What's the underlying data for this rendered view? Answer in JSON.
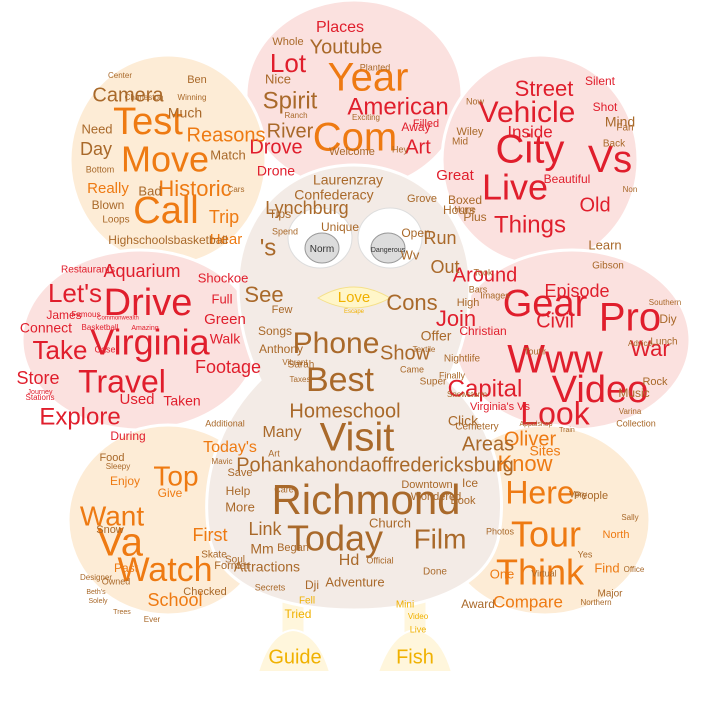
{
  "palette": {
    "red": "#e01e2c",
    "orange": "#ee7a12",
    "brown": "#a9692a",
    "gold": "#f0b100",
    "petal_pink": "#fbe1df",
    "petal_peach": "#fdecd6",
    "body_fill": "#f3ebe6",
    "outline": "#ffffff"
  },
  "eyes": {
    "left_text": "Norm",
    "right_text": "Dangerous"
  },
  "beak_text": [
    "Love",
    "Escape"
  ],
  "words": {
    "head": [
      {
        "t": "Year",
        "c": "orange"
      },
      {
        "t": "Com",
        "c": "orange"
      },
      {
        "t": "Lot",
        "c": "red"
      },
      {
        "t": "Youtube",
        "c": "brown"
      },
      {
        "t": "Spirit",
        "c": "brown"
      },
      {
        "t": "American",
        "c": "red"
      },
      {
        "t": "River",
        "c": "brown"
      },
      {
        "t": "Drove",
        "c": "red"
      },
      {
        "t": "Art",
        "c": "red"
      },
      {
        "t": "Nice",
        "c": "brown"
      },
      {
        "t": "Places",
        "c": "red"
      },
      {
        "t": "Whole",
        "c": "brown"
      },
      {
        "t": "Filled",
        "c": "red"
      },
      {
        "t": "Away",
        "c": "red"
      },
      {
        "t": "Drone",
        "c": "red"
      },
      {
        "t": "Welcome",
        "c": "brown"
      },
      {
        "t": "Planted",
        "c": "brown"
      },
      {
        "t": "Ranch",
        "c": "brown"
      },
      {
        "t": "Exciting",
        "c": "brown"
      },
      {
        "t": "Hey",
        "c": "brown"
      }
    ],
    "upper_left": [
      {
        "t": "Test",
        "c": "orange"
      },
      {
        "t": "Move",
        "c": "orange"
      },
      {
        "t": "Call",
        "c": "orange"
      },
      {
        "t": "Reasons",
        "c": "orange"
      },
      {
        "t": "Camera",
        "c": "brown"
      },
      {
        "t": "Historic",
        "c": "orange"
      },
      {
        "t": "Much",
        "c": "brown"
      },
      {
        "t": "Day",
        "c": "brown"
      },
      {
        "t": "Need",
        "c": "brown"
      },
      {
        "t": "Match",
        "c": "brown"
      },
      {
        "t": "Really",
        "c": "orange"
      },
      {
        "t": "Bad",
        "c": "brown"
      },
      {
        "t": "Blown",
        "c": "brown"
      },
      {
        "t": "Trip",
        "c": "orange"
      },
      {
        "t": "Hear",
        "c": "orange"
      },
      {
        "t": "Loops",
        "c": "brown"
      },
      {
        "t": "Highschoolsbasketball",
        "c": "brown"
      },
      {
        "t": "Ben",
        "c": "brown"
      },
      {
        "t": "Center",
        "c": "brown"
      },
      {
        "t": "Charleston",
        "c": "brown"
      },
      {
        "t": "Winning",
        "c": "brown"
      },
      {
        "t": "Bottom",
        "c": "brown"
      },
      {
        "t": "Cars",
        "c": "brown"
      }
    ],
    "upper_right": [
      {
        "t": "City",
        "c": "red"
      },
      {
        "t": "Vs",
        "c": "red"
      },
      {
        "t": "Vehicle",
        "c": "red"
      },
      {
        "t": "Live",
        "c": "red"
      },
      {
        "t": "Street",
        "c": "red"
      },
      {
        "t": "Things",
        "c": "red"
      },
      {
        "t": "Old",
        "c": "red"
      },
      {
        "t": "Inside",
        "c": "red"
      },
      {
        "t": "Great",
        "c": "red"
      },
      {
        "t": "Mind",
        "c": "brown"
      },
      {
        "t": "Shot",
        "c": "red"
      },
      {
        "t": "Silent",
        "c": "red"
      },
      {
        "t": "Learn",
        "c": "brown"
      },
      {
        "t": "Beautiful",
        "c": "red"
      },
      {
        "t": "Boxed",
        "c": "brown"
      },
      {
        "t": "Plus",
        "c": "brown"
      },
      {
        "t": "Home",
        "c": "brown"
      },
      {
        "t": "Back",
        "c": "brown"
      },
      {
        "t": "Fan",
        "c": "brown"
      },
      {
        "t": "Gibson",
        "c": "brown"
      },
      {
        "t": "Wiley",
        "c": "brown"
      },
      {
        "t": "Mid",
        "c": "brown"
      },
      {
        "t": "Non",
        "c": "brown"
      },
      {
        "t": "Now",
        "c": "brown"
      }
    ],
    "left": [
      {
        "t": "Virginia",
        "c": "red"
      },
      {
        "t": "Drive",
        "c": "red"
      },
      {
        "t": "Travel",
        "c": "red"
      },
      {
        "t": "Let's",
        "c": "red"
      },
      {
        "t": "Take",
        "c": "red"
      },
      {
        "t": "Explore",
        "c": "red"
      },
      {
        "t": "Footage",
        "c": "red"
      },
      {
        "t": "Aquarium",
        "c": "red"
      },
      {
        "t": "Store",
        "c": "red"
      },
      {
        "t": "Walk",
        "c": "red"
      },
      {
        "t": "Green",
        "c": "red"
      },
      {
        "t": "Used",
        "c": "red"
      },
      {
        "t": "Taken",
        "c": "red"
      },
      {
        "t": "Connect",
        "c": "red"
      },
      {
        "t": "Full",
        "c": "red"
      },
      {
        "t": "During",
        "c": "red"
      },
      {
        "t": "Restaurants",
        "c": "red"
      },
      {
        "t": "James",
        "c": "red"
      },
      {
        "t": "Shockoe",
        "c": "red"
      },
      {
        "t": "Famous",
        "c": "red"
      },
      {
        "t": "Case",
        "c": "red"
      },
      {
        "t": "Stations",
        "c": "red"
      },
      {
        "t": "Journey",
        "c": "red"
      },
      {
        "t": "Amazing",
        "c": "red"
      },
      {
        "t": "Basketball",
        "c": "red"
      },
      {
        "t": "Commonwealth",
        "c": "red"
      }
    ],
    "right": [
      {
        "t": "Gear",
        "c": "red"
      },
      {
        "t": "Pro",
        "c": "red"
      },
      {
        "t": "Www",
        "c": "red"
      },
      {
        "t": "Video",
        "c": "red"
      },
      {
        "t": "War",
        "c": "red"
      },
      {
        "t": "Capital",
        "c": "red"
      },
      {
        "t": "Look",
        "c": "red"
      },
      {
        "t": "Around",
        "c": "red"
      },
      {
        "t": "Episode",
        "c": "red"
      },
      {
        "t": "Civil",
        "c": "red"
      },
      {
        "t": "Join",
        "c": "red"
      },
      {
        "t": "Christian",
        "c": "red"
      },
      {
        "t": "Music",
        "c": "brown"
      },
      {
        "t": "Lunch",
        "c": "brown"
      },
      {
        "t": "Diy",
        "c": "brown"
      },
      {
        "t": "Rock",
        "c": "brown"
      },
      {
        "t": "Virginia's Vs",
        "c": "red"
      },
      {
        "t": "Toutir",
        "c": "brown"
      },
      {
        "t": "Nightlife",
        "c": "brown"
      },
      {
        "t": "Southern",
        "c": "brown"
      },
      {
        "t": "High",
        "c": "brown"
      },
      {
        "t": "Bars",
        "c": "brown"
      },
      {
        "t": "Took",
        "c": "brown"
      },
      {
        "t": "Finally",
        "c": "brown"
      },
      {
        "t": "Snowstorm",
        "c": "brown"
      },
      {
        "t": "Varina",
        "c": "brown"
      },
      {
        "t": "Collection",
        "c": "brown"
      },
      {
        "t": "Advice",
        "c": "brown"
      },
      {
        "t": "Images",
        "c": "brown"
      },
      {
        "t": "Appalshop",
        "c": "brown"
      }
    ],
    "lower_left": [
      {
        "t": "Va",
        "c": "orange"
      },
      {
        "t": "Watch",
        "c": "orange"
      },
      {
        "t": "Want",
        "c": "orange"
      },
      {
        "t": "Top",
        "c": "orange"
      },
      {
        "t": "Today's",
        "c": "orange"
      },
      {
        "t": "First",
        "c": "orange"
      },
      {
        "t": "School",
        "c": "orange"
      },
      {
        "t": "Give",
        "c": "orange"
      },
      {
        "t": "Enjoy",
        "c": "orange"
      },
      {
        "t": "Snow",
        "c": "brown"
      },
      {
        "t": "Past",
        "c": "orange"
      },
      {
        "t": "Former",
        "c": "brown"
      },
      {
        "t": "Soul",
        "c": "brown"
      },
      {
        "t": "Checked",
        "c": "brown"
      },
      {
        "t": "Food",
        "c": "brown"
      },
      {
        "t": "Skate",
        "c": "brown"
      },
      {
        "t": "Mavic",
        "c": "brown"
      },
      {
        "t": "Additional",
        "c": "brown"
      },
      {
        "t": "Owned",
        "c": "brown"
      },
      {
        "t": "Designer",
        "c": "brown"
      },
      {
        "t": "Beth's",
        "c": "brown"
      },
      {
        "t": "Solely",
        "c": "brown"
      },
      {
        "t": "Sleepy",
        "c": "brown"
      },
      {
        "t": "Trees",
        "c": "brown"
      },
      {
        "t": "Ever",
        "c": "brown"
      }
    ],
    "lower_right": [
      {
        "t": "Tour",
        "c": "orange"
      },
      {
        "t": "Here",
        "c": "orange"
      },
      {
        "t": "Think",
        "c": "orange"
      },
      {
        "t": "Know",
        "c": "orange"
      },
      {
        "t": "Oliver",
        "c": "orange"
      },
      {
        "t": "Compare",
        "c": "orange"
      },
      {
        "t": "One",
        "c": "orange"
      },
      {
        "t": "Award",
        "c": "brown"
      },
      {
        "t": "Find",
        "c": "orange"
      },
      {
        "t": "Major",
        "c": "brown"
      },
      {
        "t": "Sites",
        "c": "orange"
      },
      {
        "t": "Virtual",
        "c": "brown"
      },
      {
        "t": "North",
        "c": "orange"
      },
      {
        "t": "People",
        "c": "brown"
      },
      {
        "t": "Very",
        "c": "brown"
      },
      {
        "t": "Cemetery",
        "c": "brown"
      },
      {
        "t": "Yes",
        "c": "brown"
      },
      {
        "t": "Train",
        "c": "brown"
      },
      {
        "t": "Photos",
        "c": "brown"
      },
      {
        "t": "Northern",
        "c": "brown"
      },
      {
        "t": "Sally",
        "c": "brown"
      },
      {
        "t": "Office",
        "c": "brown"
      }
    ],
    "body": [
      {
        "t": "Richmond",
        "c": "brown"
      },
      {
        "t": "Visit",
        "c": "brown"
      },
      {
        "t": "Best",
        "c": "brown"
      },
      {
        "t": "Phone",
        "c": "brown"
      },
      {
        "t": "Today",
        "c": "brown"
      },
      {
        "t": "Film",
        "c": "brown"
      },
      {
        "t": "Homeschool",
        "c": "brown"
      },
      {
        "t": "Areas",
        "c": "brown"
      },
      {
        "t": "Show",
        "c": "brown"
      },
      {
        "t": "Cons",
        "c": "brown"
      },
      {
        "t": "Out",
        "c": "brown"
      },
      {
        "t": "Run",
        "c": "brown"
      },
      {
        "t": "See",
        "c": "brown"
      },
      {
        "t": "'s",
        "c": "brown"
      },
      {
        "t": "Pohankahondaoffredericksburg",
        "c": "brown"
      },
      {
        "t": "Confederacy",
        "c": "brown"
      },
      {
        "t": "Lynchburg",
        "c": "brown"
      },
      {
        "t": "Laurenzray",
        "c": "brown"
      },
      {
        "t": "Many",
        "c": "brown"
      },
      {
        "t": "Click",
        "c": "brown"
      },
      {
        "t": "Link",
        "c": "brown"
      },
      {
        "t": "More",
        "c": "brown"
      },
      {
        "t": "Help",
        "c": "brown"
      },
      {
        "t": "Mm",
        "c": "brown"
      },
      {
        "t": "Hd",
        "c": "brown"
      },
      {
        "t": "Attractions",
        "c": "brown"
      },
      {
        "t": "Church",
        "c": "brown"
      },
      {
        "t": "Adventure",
        "c": "brown"
      },
      {
        "t": "Offer",
        "c": "brown"
      },
      {
        "t": "Tips",
        "c": "brown"
      },
      {
        "t": "Few",
        "c": "brown"
      },
      {
        "t": "Anthony",
        "c": "brown"
      },
      {
        "t": "Songs",
        "c": "brown"
      },
      {
        "t": "Hours",
        "c": "brown"
      },
      {
        "t": "Grove",
        "c": "brown"
      },
      {
        "t": "Unique",
        "c": "brown"
      },
      {
        "t": "Open",
        "c": "brown"
      },
      {
        "t": "Wv",
        "c": "brown"
      },
      {
        "t": "Ice",
        "c": "brown"
      },
      {
        "t": "Book",
        "c": "brown"
      },
      {
        "t": "Super",
        "c": "brown"
      },
      {
        "t": "Downtown",
        "c": "brown"
      },
      {
        "t": "Wondered",
        "c": "brown"
      },
      {
        "t": "Began",
        "c": "brown"
      },
      {
        "t": "Came",
        "c": "brown"
      },
      {
        "t": "Taxes",
        "c": "brown"
      },
      {
        "t": "Sarah",
        "c": "brown"
      },
      {
        "t": "Spend",
        "c": "brown"
      },
      {
        "t": "Dji",
        "c": "brown"
      },
      {
        "t": "Done",
        "c": "brown"
      },
      {
        "t": "Save",
        "c": "brown"
      },
      {
        "t": "Secrets",
        "c": "brown"
      },
      {
        "t": "Official",
        "c": "brown"
      },
      {
        "t": "Textile",
        "c": "brown"
      },
      {
        "t": "Vibrant",
        "c": "brown"
      },
      {
        "t": "Art",
        "c": "brown"
      },
      {
        "t": "Care",
        "c": "brown"
      }
    ],
    "feet": [
      {
        "t": "Fish",
        "c": "gold"
      },
      {
        "t": "Guide",
        "c": "gold"
      },
      {
        "t": "Tried",
        "c": "gold"
      },
      {
        "t": "Fell",
        "c": "gold"
      },
      {
        "t": "Mini",
        "c": "gold"
      },
      {
        "t": "Video",
        "c": "gold"
      },
      {
        "t": "Live",
        "c": "gold"
      }
    ]
  }
}
